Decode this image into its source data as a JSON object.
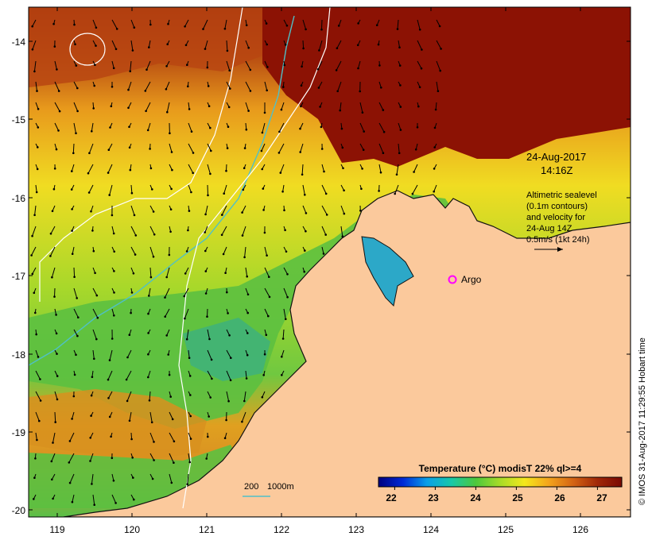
{
  "map": {
    "lat_ticks": [
      "-14",
      "-15",
      "-16",
      "-17",
      "-18",
      "-19",
      "-20"
    ],
    "lon_ticks": [
      "119",
      "120",
      "121",
      "122",
      "123",
      "124",
      "125",
      "126"
    ],
    "colors": {
      "land": "#fbc99c",
      "coast": "#111111",
      "isobath_200": "#4fc0c8",
      "isobath_1000": "#ffffff",
      "argo_marker": "#ff00ff"
    }
  },
  "annotations": {
    "date": "24-Aug-2017",
    "time": "14:16Z",
    "altimetry_lines": [
      "Altimetric sealevel",
      "(0.1m contours)",
      "and velocity for",
      "24-Aug 14Z",
      "0.5m/s (1kt 24h)"
    ],
    "argo_label": "Argo",
    "isobath_label_200": "200",
    "isobath_label_1000": "1000m"
  },
  "colorbar": {
    "title": "Temperature (°C) modisT 22% ql>=4",
    "ticks": [
      "22",
      "23",
      "24",
      "25",
      "26",
      "27"
    ],
    "min": 21.6,
    "max": 27.6,
    "colors": [
      "#00007f",
      "#0029d6",
      "#0aa0e8",
      "#18c8a8",
      "#4cc83c",
      "#a8dc28",
      "#f4e81c",
      "#f4a41c",
      "#d46414",
      "#a02808",
      "#7a0a04"
    ]
  },
  "credit": "© IMOS 31-Aug-2017 11:29:55 Hobart time"
}
